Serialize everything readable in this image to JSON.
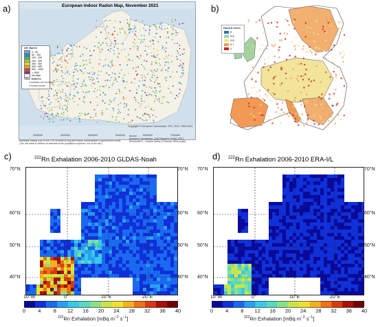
{
  "panel_a": {
    "label": "a)",
    "title": "European Indoor Radon Map, November 2021",
    "legend_title": "AM_Bq/m3",
    "legend_items": [
      {
        "label": "0 - 50",
        "color": "#6aa6d8"
      },
      {
        "label": "50 - 100",
        "color": "#2a8cc4"
      },
      {
        "label": "100 - 200",
        "color": "#58b054"
      },
      {
        "label": "200 - 300",
        "color": "#9bd04a"
      },
      {
        "label": "300 - 400",
        "color": "#e6d238"
      },
      {
        "label": "400 - 600",
        "color": "#f0a030"
      },
      {
        "label": "600 - 1000",
        "color": "#d8452a"
      },
      {
        "label": "> 1000",
        "color": "#8a2a8a"
      },
      {
        "label": "No data",
        "color": "#ffffff"
      }
    ],
    "other_features_title": "Other features",
    "other_features": [
      "Countries not included",
      "Country border"
    ],
    "footnote_1": "Arithmetic means over 10 km x 10 km cells of long-term radon concentration in ground floor rooms.",
    "footnote_2": "(The cell mean is neither an estimate of the population exposure, nor of the risk.)",
    "source_line_1": "Source:",
    "source_line_2": "European Commission, Joint Research Centre (JRC)",
    "source_line_3": "Directorate G - Nuclear Safety & Security, REM project",
    "copyright": "Copyright © European Commission, JRC, 2021. REM 2021",
    "x_ticks": [
      "2000000",
      "3000000",
      "4000000",
      "5000000",
      "6000000",
      "7000000"
    ]
  },
  "panel_b": {
    "label": "b)",
    "legend_title": "Hazard Index",
    "legend_items": [
      {
        "label": "0",
        "color": "#2e6fb6"
      },
      {
        "label": "0.5",
        "color": "#a3d4a0"
      },
      {
        "label": "0.6",
        "color": "#f2e49a"
      },
      {
        "label": "0.7",
        "color": "#f29a55"
      },
      {
        "label": "1",
        "color": "#c8281e"
      }
    ]
  },
  "panel_c": {
    "label": "c)",
    "title_sup": "222",
    "title": "Rn Exhalation 2006-2010 GLDAS-Noah",
    "lat_labels": [
      "70°N",
      "60°N",
      "50°N",
      "40°N"
    ],
    "lon_labels": [
      "10°W",
      "0°",
      "10°E",
      "20°E"
    ],
    "colorbar_ticks": [
      "0",
      "4",
      "8",
      "12",
      "16",
      "20",
      "24",
      "28",
      "32",
      "36",
      "40"
    ],
    "colorbar_label_sup": "222",
    "colorbar_label": "Rn Exhalation  [mBq m",
    "colorbar_label_exp1": "−2",
    "colorbar_label_mid": " s",
    "colorbar_label_exp2": "−1",
    "colorbar_label_end": "]"
  },
  "panel_d": {
    "label": "d)",
    "title_sup": "222",
    "title": "Rn Exhalation 2006-2010 ERA-I/L",
    "lat_labels": [
      "70°N",
      "60°N",
      "50°N",
      "40°N"
    ],
    "lon_labels": [
      "10°W",
      "0°",
      "10°E",
      "20°E"
    ],
    "colorbar_ticks": [
      "0",
      "4",
      "8",
      "12",
      "16",
      "20",
      "24",
      "28",
      "32",
      "36",
      "40"
    ],
    "colorbar_label_sup": "222",
    "colorbar_label": "Rn Exhalation  [mBq m",
    "colorbar_label_exp1": "−2",
    "colorbar_label_mid": " s",
    "colorbar_label_exp2": "−1",
    "colorbar_label_end": "]"
  },
  "colormap": [
    "#0a0a9a",
    "#1030d8",
    "#1a6af0",
    "#2aa0f2",
    "#38c8e8",
    "#5ad8c0",
    "#8ae08a",
    "#c8e44a",
    "#f0e030",
    "#f4b020",
    "#ee7018",
    "#d83a10",
    "#a81008",
    "#700404"
  ]
}
